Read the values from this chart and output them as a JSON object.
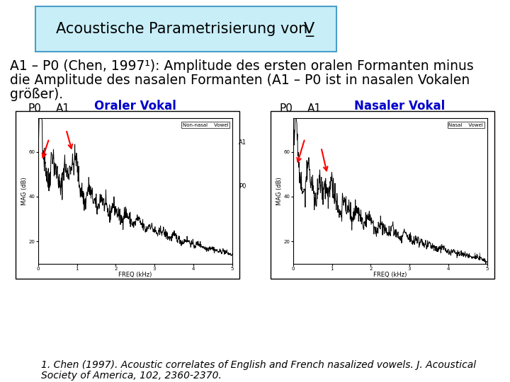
{
  "title_prefix": "Acoustische Parametrisierung von ",
  "title_symbol": "V̲",
  "title_box_bg": "#c8eef8",
  "title_box_border": "#4a9fc8",
  "bg_color": "#ffffff",
  "main_text_line1": "A1 – P0 (Chen, 1997¹): Amplitude des ersten oralen Formanten minus",
  "main_text_line2": "die Amplitude des nasalen Formanten (A1 – P0 ist in nasalen Vokalen",
  "main_text_line3": "größer).",
  "label_oraler": "Oraler Vokal",
  "label_nasaler": "Nasaler Vokal",
  "label_color_oraler": "#0000cc",
  "label_color_nasaler": "#0000cc",
  "label_p0_left": "P0",
  "label_a1_left": "A1",
  "label_p0_right": "P0",
  "label_a1_right": "A1",
  "footnote_line1": "1. Chen (1997). Acoustic correlates of English and French nasalized vowels. J. Acoustical",
  "footnote_line2": "Society of America, 102, 2360-2370.",
  "main_font_size": 13.5,
  "footnote_font_size": 10,
  "title_font_size": 15
}
